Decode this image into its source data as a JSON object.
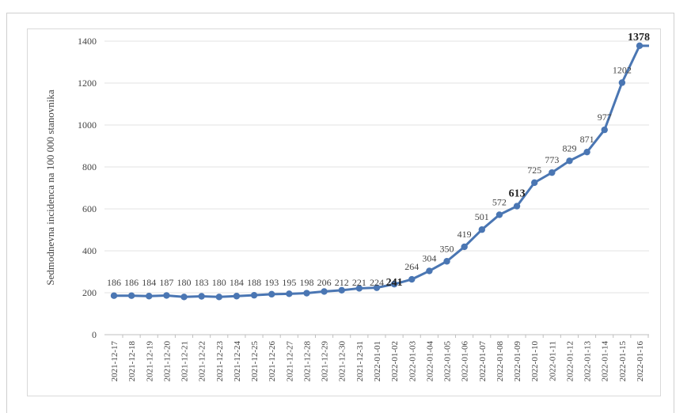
{
  "chart_data": {
    "type": "line",
    "ylabel": "Sedmodnevna incidenca na 100 000 stanovnika",
    "ylim": [
      0,
      1400
    ],
    "yticks": [
      0,
      200,
      400,
      600,
      800,
      1000,
      1200,
      1400
    ],
    "grid": true,
    "color": "#4a76b3",
    "categories": [
      "2021-12-17",
      "2021-12-18",
      "2021-12-19",
      "2021-12-20",
      "2021-12-21",
      "2021-12-22",
      "2021-12-23",
      "2021-12-24",
      "2021-12-25",
      "2021-12-26",
      "2021-12-27",
      "2021-12-28",
      "2021-12-29",
      "2021-12-30",
      "2021-12-31",
      "2022-01-01",
      "2022-01-02",
      "2022-01-03",
      "2022-01-04",
      "2022-01-05",
      "2022-01-06",
      "2022-01-07",
      "2022-01-08",
      "2022-01-09",
      "2022-01-10",
      "2022-01-11",
      "2022-01-12",
      "2022-01-13",
      "2022-01-14",
      "2022-01-15",
      "2022-01-16"
    ],
    "values": [
      186,
      186,
      184,
      187,
      180,
      183,
      180,
      184,
      188,
      193,
      195,
      198,
      206,
      212,
      221,
      224,
      241,
      264,
      304,
      350,
      419,
      501,
      572,
      613,
      725,
      773,
      829,
      871,
      977,
      1202,
      1378
    ],
    "bold_labels": [
      "2022-01-02",
      "2022-01-09",
      "2022-01-16"
    ]
  }
}
